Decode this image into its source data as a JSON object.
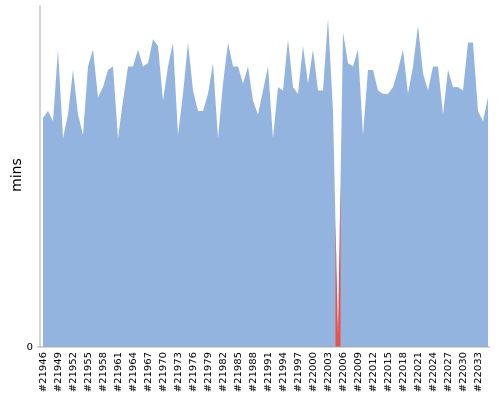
{
  "chart_data": {
    "type": "area",
    "y_label": "mins",
    "categories": [
      "#21946",
      null,
      null,
      "#21949",
      null,
      null,
      "#21952",
      null,
      null,
      "#21955",
      null,
      null,
      "#21958",
      null,
      null,
      "#21961",
      null,
      null,
      "#21964",
      null,
      null,
      "#21967",
      null,
      null,
      "#21970",
      null,
      null,
      "#21973",
      null,
      null,
      "#21976",
      null,
      null,
      "#21979",
      null,
      null,
      "#21982",
      null,
      null,
      "#21985",
      null,
      null,
      "#21988",
      null,
      null,
      "#21991",
      null,
      null,
      "#21994",
      null,
      null,
      "#21997",
      null,
      null,
      "#22000",
      null,
      null,
      "#22003",
      null,
      null,
      "#22006",
      null,
      null,
      "#22009",
      null,
      null,
      "#22012",
      null,
      null,
      "#22015",
      null,
      null,
      "#22018",
      null,
      null,
      "#22021",
      null,
      null,
      "#22024",
      null,
      null,
      "#22027",
      null,
      null,
      "#22030",
      null,
      null,
      "#22033",
      null,
      null
    ],
    "values": [
      67,
      69,
      66,
      87,
      61,
      68,
      81,
      68,
      62,
      82,
      87,
      73,
      76,
      81,
      82,
      61,
      72,
      82,
      82,
      87,
      82,
      83,
      90,
      88,
      72,
      82,
      89,
      62,
      74,
      89,
      75,
      69,
      69,
      74,
      83,
      61,
      77,
      89,
      82,
      82,
      77,
      82,
      72,
      68,
      75,
      82,
      61,
      76,
      75,
      90,
      76,
      74,
      88,
      77,
      87,
      75,
      75,
      96,
      69,
      3,
      92,
      83,
      82,
      87,
      62,
      81,
      81,
      75,
      74,
      74,
      76,
      81,
      87,
      74,
      82,
      94,
      80,
      75,
      82,
      82,
      68,
      81,
      76,
      76,
      75,
      89,
      89,
      69,
      66,
      73
    ],
    "color": "#92b4de",
    "highlight": {
      "index": 59,
      "color": "#e8524a"
    },
    "ylim": [
      0,
      100
    ],
    "yticks": [
      0
    ]
  }
}
